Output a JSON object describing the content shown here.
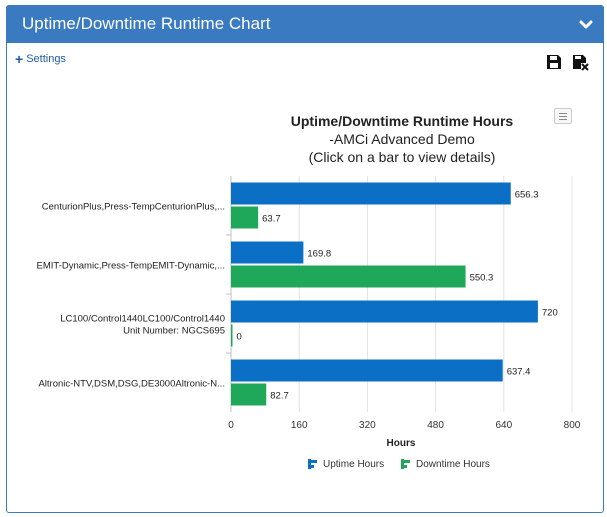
{
  "panel": {
    "title": "Uptime/Downtime Runtime Chart"
  },
  "toolbar": {
    "settings_label": "Settings",
    "save_icon": "save-icon",
    "clear_icon": "clear-icon"
  },
  "colors": {
    "header": "#3a7ac0",
    "uptime": "#0b6fc6",
    "downtime": "#20a85a"
  },
  "chart_data": {
    "type": "bar",
    "orientation": "horizontal",
    "title": "Uptime/Downtime Runtime Hours",
    "subtitle_lines": [
      "-AMCi Advanced Demo",
      "(Click on a bar to view details)"
    ],
    "xlabel": "Hours",
    "xlim": [
      0,
      800
    ],
    "xticks": [
      0,
      160,
      320,
      480,
      640,
      800
    ],
    "categories": [
      [
        "CenturionPlus,Press-TempCenturionPlus,..."
      ],
      [
        "EMIT-Dynamic,Press-TempEMIT-Dynamic,..."
      ],
      [
        "LC100/Control1440LC100/Control1440",
        "Unit Number: NGCS695"
      ],
      [
        "Altronic-NTV,DSM,DSG,DE3000Altronic-N..."
      ]
    ],
    "series": [
      {
        "name": "Uptime Hours",
        "values": [
          656.3,
          169.8,
          720,
          637.4
        ],
        "labels": [
          "656.3",
          "169.8",
          "720",
          "637.4"
        ]
      },
      {
        "name": "Downtime Hours",
        "values": [
          63.7,
          550.3,
          0,
          82.7
        ],
        "labels": [
          "63.7",
          "550.3",
          "0",
          "82.7"
        ]
      }
    ],
    "grid": true,
    "legend_position": "bottom"
  }
}
